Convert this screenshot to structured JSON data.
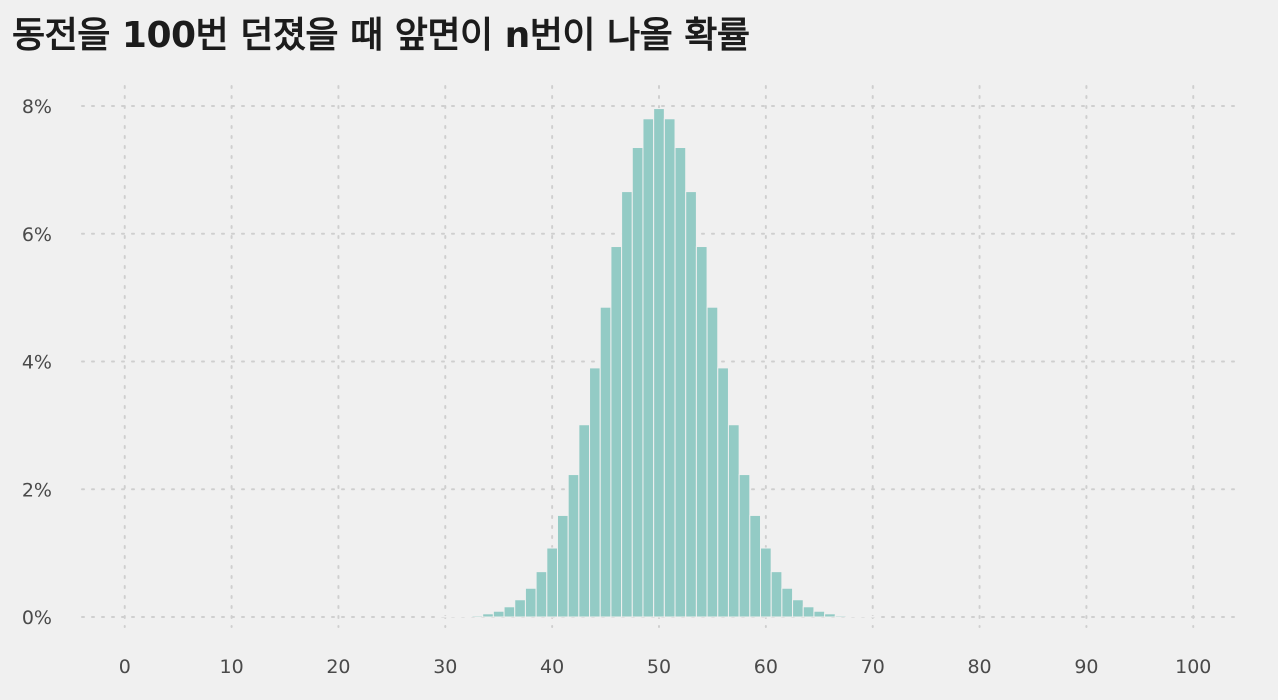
{
  "title": "동전을 100번 던졌을 때 앞면이 n번이 나올 확률",
  "colors": {
    "bar": "#93cbc5",
    "background": "#f0f0f0",
    "grid": "#cfcfcf"
  },
  "chart_data": {
    "type": "bar",
    "title": "동전을 100번 던졌을 때 앞면이 n번이 나올 확률",
    "xlabel": "",
    "ylabel": "",
    "xlim": [
      -4,
      104
    ],
    "ylim": [
      0,
      8
    ],
    "grid": true,
    "legend": "none",
    "x_ticks": [
      0,
      10,
      20,
      30,
      40,
      50,
      60,
      70,
      80,
      90,
      100
    ],
    "y_ticks": [
      0,
      2,
      4,
      6,
      8
    ],
    "y_tick_labels": [
      "0%",
      "2%",
      "4%",
      "6%",
      "8%"
    ],
    "series": [
      {
        "x": [
          30,
          31,
          32,
          33,
          34,
          35,
          36,
          37,
          38,
          39,
          40,
          41,
          42,
          43,
          44,
          45,
          46,
          47,
          48,
          49,
          50,
          51,
          52,
          53,
          54,
          55,
          56,
          57,
          58,
          59,
          60,
          61,
          62,
          63,
          64,
          65,
          66,
          67,
          68,
          69,
          70
        ],
        "values": [
          0.002,
          0.004,
          0.01,
          0.02,
          0.05,
          0.09,
          0.16,
          0.27,
          0.45,
          0.71,
          1.08,
          1.59,
          2.23,
          3.01,
          3.9,
          4.85,
          5.8,
          6.66,
          7.35,
          7.8,
          7.96,
          7.8,
          7.35,
          6.66,
          5.8,
          4.85,
          3.9,
          3.01,
          2.23,
          1.59,
          1.08,
          0.71,
          0.45,
          0.27,
          0.16,
          0.09,
          0.05,
          0.02,
          0.01,
          0.004,
          0.002
        ]
      }
    ]
  }
}
